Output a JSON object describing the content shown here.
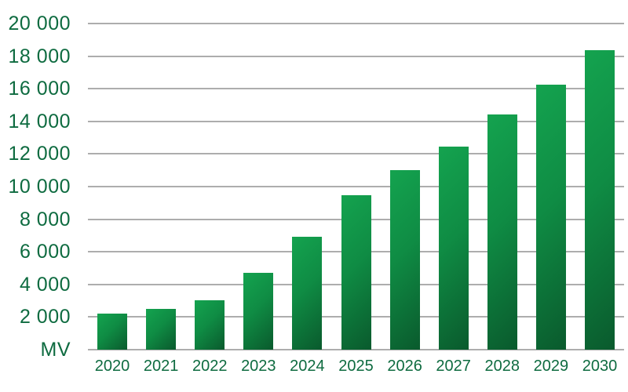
{
  "chart_data": {
    "type": "bar",
    "title": "",
    "unit_label": "MV",
    "categories": [
      "2020",
      "2021",
      "2022",
      "2023",
      "2024",
      "2025",
      "2026",
      "2027",
      "2028",
      "2029",
      "2030"
    ],
    "values": [
      2200,
      2500,
      3050,
      4700,
      6900,
      9450,
      11000,
      12450,
      14400,
      16250,
      18350
    ],
    "ylim": [
      0,
      20000
    ],
    "ytick_step": 2000,
    "ytick_labels": [
      "20 000",
      "18 000",
      "16 000",
      "14 000",
      "12 000",
      "10 000",
      "8 000",
      "6 000",
      "4 000",
      "2 000"
    ],
    "grid": true,
    "legend": false,
    "colors": {
      "bar_gradient_start": "#14a34f",
      "bar_gradient_end": "#0a5a2d",
      "label_text": "#0e6b40",
      "gridline": "#adadad",
      "background": "#ffffff"
    }
  }
}
